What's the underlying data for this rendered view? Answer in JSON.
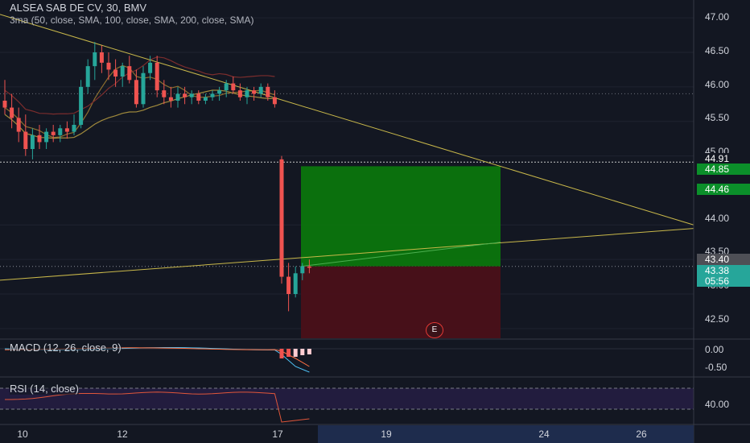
{
  "header": {
    "symbol_line": "ALSEA SAB DE CV, 30, BMV",
    "indicator_line": "3ma (50, close, SMA, 100, close, SMA, 200, close, SMA)"
  },
  "macd_panel": {
    "label": "MACD (12, 26, close, 9)"
  },
  "rsi_panel": {
    "label": "RSI (14, close)"
  },
  "earnings_marker": {
    "label": "E",
    "color": "#e53935"
  },
  "price_axis": {
    "ticks": [
      "47.00",
      "46.50",
      "46.00",
      "45.50",
      "45.00",
      "44.00",
      "43.50",
      "43.00",
      "42.50"
    ],
    "tags": [
      {
        "value": "44.91",
        "bg": "#131722",
        "fg": "#ffffff"
      },
      {
        "value": "44.85",
        "bg": "#0b8f2a",
        "fg": "#ffffff"
      },
      {
        "value": "44.46",
        "bg": "#0b8f2a",
        "fg": "#ffffff"
      },
      {
        "value": "43.40",
        "bg": "#4e4f56",
        "fg": "#ffffff"
      },
      {
        "value": "43.38",
        "bg": "#26a69a",
        "fg": "#ffffff"
      },
      {
        "value": "05:56",
        "bg": "#26a69a",
        "fg": "#ffffff"
      }
    ]
  },
  "macd_axis": {
    "ticks": [
      "0.00",
      "-0.50"
    ]
  },
  "rsi_axis": {
    "ticks": [
      "40.00"
    ]
  },
  "time_axis": {
    "ticks": [
      "10",
      "12",
      "17",
      "19",
      "24",
      "26"
    ]
  },
  "colors": {
    "background": "#131722",
    "up": "#26a69a",
    "down": "#ef5350",
    "trendline": "#c9b84a",
    "profit_zone": "#0b7a0b",
    "loss_zone": "#4a1019",
    "rsi_band": "#2a1f4a",
    "macd_line": "#4fc3f7",
    "signal_line": "#ff7043"
  },
  "chart_data": {
    "type": "candlestick",
    "symbol": "ALSEA SAB DE CV",
    "interval": "30",
    "exchange": "BMV",
    "ylim": [
      42.3,
      47.2
    ],
    "x_dates": [
      "10",
      "12",
      "17",
      "19",
      "24",
      "26"
    ],
    "indicators": [
      "3ma (50, close, SMA, 100, close, SMA, 200, close, SMA)",
      "MACD (12, 26, close, 9)",
      "RSI (14, close)"
    ],
    "candles": [
      {
        "o": 45.8,
        "h": 46.1,
        "l": 45.6,
        "c": 45.7
      },
      {
        "o": 45.7,
        "h": 45.9,
        "l": 45.4,
        "c": 45.55
      },
      {
        "o": 45.55,
        "h": 45.7,
        "l": 45.2,
        "c": 45.35
      },
      {
        "o": 45.35,
        "h": 45.6,
        "l": 45.0,
        "c": 45.1
      },
      {
        "o": 45.1,
        "h": 45.4,
        "l": 44.95,
        "c": 45.3
      },
      {
        "o": 45.3,
        "h": 45.45,
        "l": 45.1,
        "c": 45.2
      },
      {
        "o": 45.2,
        "h": 45.4,
        "l": 45.1,
        "c": 45.35
      },
      {
        "o": 45.35,
        "h": 45.45,
        "l": 45.2,
        "c": 45.3
      },
      {
        "o": 45.3,
        "h": 45.45,
        "l": 45.2,
        "c": 45.4
      },
      {
        "o": 45.4,
        "h": 45.5,
        "l": 45.25,
        "c": 45.35
      },
      {
        "o": 45.35,
        "h": 45.6,
        "l": 45.3,
        "c": 45.45
      },
      {
        "o": 45.45,
        "h": 46.1,
        "l": 45.4,
        "c": 46.0
      },
      {
        "o": 46.0,
        "h": 46.4,
        "l": 45.9,
        "c": 46.3
      },
      {
        "o": 46.3,
        "h": 46.65,
        "l": 46.1,
        "c": 46.5
      },
      {
        "o": 46.5,
        "h": 46.6,
        "l": 46.2,
        "c": 46.35
      },
      {
        "o": 46.35,
        "h": 46.5,
        "l": 46.1,
        "c": 46.25
      },
      {
        "o": 46.25,
        "h": 46.4,
        "l": 46.0,
        "c": 46.15
      },
      {
        "o": 46.15,
        "h": 46.35,
        "l": 46.0,
        "c": 46.3
      },
      {
        "o": 46.3,
        "h": 46.45,
        "l": 46.05,
        "c": 46.1
      },
      {
        "o": 46.1,
        "h": 46.25,
        "l": 45.7,
        "c": 45.75
      },
      {
        "o": 45.75,
        "h": 46.3,
        "l": 45.7,
        "c": 46.2
      },
      {
        "o": 46.2,
        "h": 46.45,
        "l": 46.1,
        "c": 46.35
      },
      {
        "o": 46.35,
        "h": 46.45,
        "l": 45.85,
        "c": 45.95
      },
      {
        "o": 45.95,
        "h": 46.1,
        "l": 45.75,
        "c": 45.85
      },
      {
        "o": 45.85,
        "h": 46.0,
        "l": 45.7,
        "c": 45.8
      },
      {
        "o": 45.8,
        "h": 46.0,
        "l": 45.7,
        "c": 45.9
      },
      {
        "o": 45.9,
        "h": 46.0,
        "l": 45.75,
        "c": 45.85
      },
      {
        "o": 45.85,
        "h": 45.95,
        "l": 45.75,
        "c": 45.9
      },
      {
        "o": 45.9,
        "h": 45.95,
        "l": 45.75,
        "c": 45.8
      },
      {
        "o": 45.8,
        "h": 45.9,
        "l": 45.75,
        "c": 45.85
      },
      {
        "o": 45.85,
        "h": 45.95,
        "l": 45.8,
        "c": 45.9
      },
      {
        "o": 45.9,
        "h": 46.0,
        "l": 45.8,
        "c": 45.95
      },
      {
        "o": 45.95,
        "h": 46.1,
        "l": 45.85,
        "c": 46.05
      },
      {
        "o": 46.05,
        "h": 46.15,
        "l": 45.9,
        "c": 45.95
      },
      {
        "o": 45.95,
        "h": 46.05,
        "l": 45.8,
        "c": 45.85
      },
      {
        "o": 45.85,
        "h": 46.0,
        "l": 45.75,
        "c": 45.95
      },
      {
        "o": 45.95,
        "h": 46.0,
        "l": 45.8,
        "c": 45.9
      },
      {
        "o": 45.9,
        "h": 46.05,
        "l": 45.85,
        "c": 46.0
      },
      {
        "o": 46.0,
        "h": 46.05,
        "l": 45.8,
        "c": 45.85
      },
      {
        "o": 45.85,
        "h": 45.95,
        "l": 45.7,
        "c": 45.75
      },
      {
        "o": 44.95,
        "h": 45.0,
        "l": 43.15,
        "c": 43.25
      },
      {
        "o": 43.25,
        "h": 43.45,
        "l": 42.75,
        "c": 43.0
      },
      {
        "o": 43.0,
        "h": 43.4,
        "l": 42.95,
        "c": 43.3
      },
      {
        "o": 43.3,
        "h": 43.45,
        "l": 43.2,
        "c": 43.4
      },
      {
        "o": 43.4,
        "h": 43.5,
        "l": 43.3,
        "c": 43.38
      }
    ],
    "trendlines": [
      {
        "name": "upper",
        "from": [
          0,
          47.05
        ],
        "to": [
          62,
          44.0
        ]
      },
      {
        "name": "lower",
        "from": [
          0,
          43.2
        ],
        "to": [
          62,
          43.95
        ]
      }
    ],
    "position": {
      "entry": 43.4,
      "target": 44.85,
      "stop": 42.2
    },
    "macd_ylim": [
      -0.8,
      0.15
    ],
    "rsi_ylim": [
      30,
      50
    ]
  }
}
